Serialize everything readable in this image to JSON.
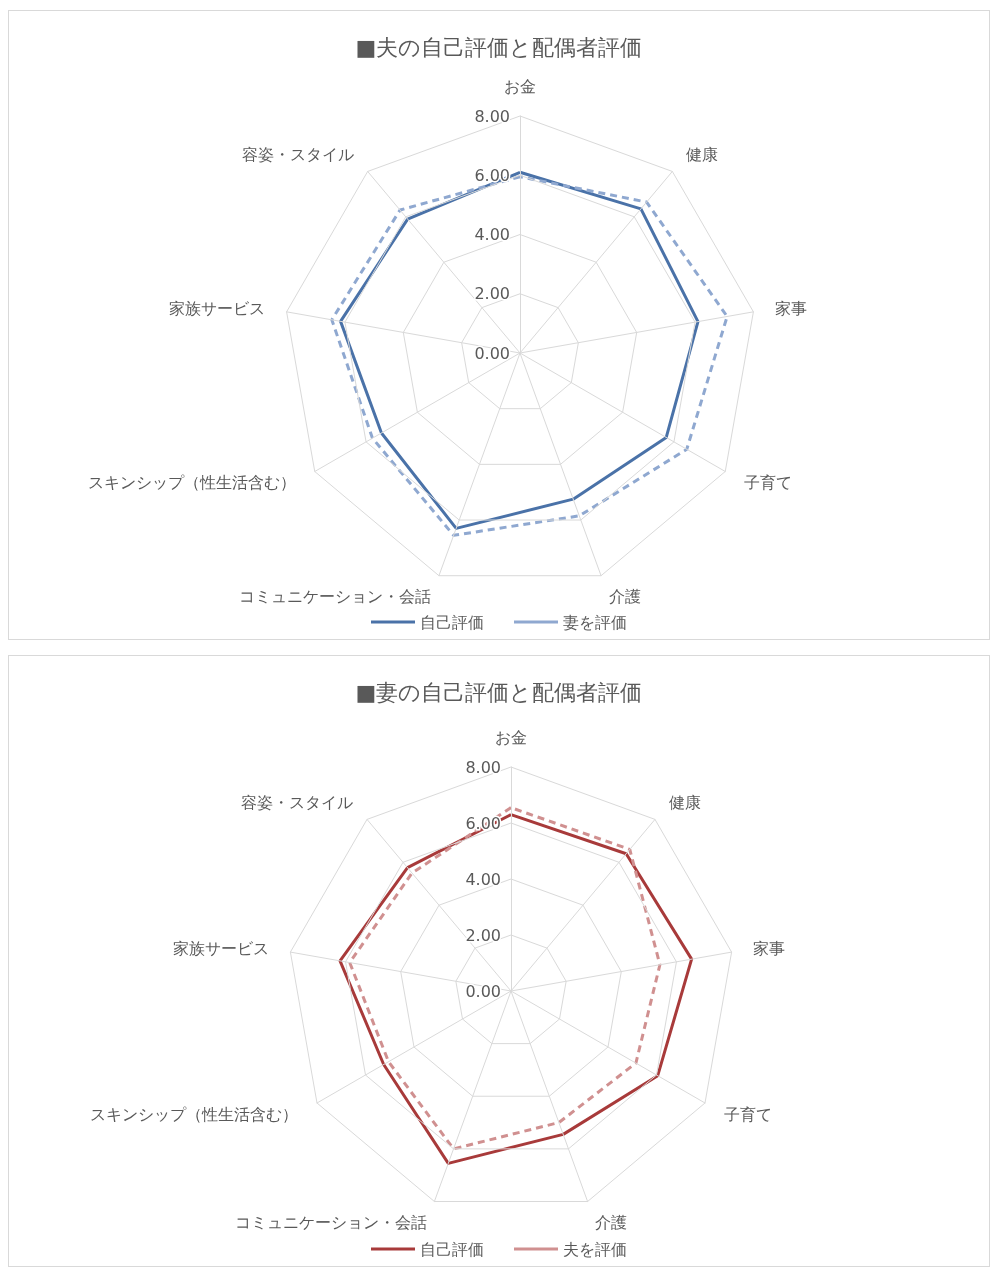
{
  "chart_data": [
    {
      "type": "radar",
      "title": "■夫の自己評価と配偶者評価",
      "categories": [
        "お金",
        "健康",
        "家事",
        "子育て",
        "介護",
        "コミュニケーション・会話",
        "スキンシップ（性生活含む）",
        "家族サービス",
        "容姿・スタイル"
      ],
      "series": [
        {
          "name": "自己評価",
          "color": "#4a72a8",
          "line_style": "solid",
          "values": [
            6.1,
            6.35,
            6.1,
            5.7,
            5.25,
            6.3,
            5.4,
            6.15,
            5.9
          ]
        },
        {
          "name": "妻を評価",
          "color": "#8fa8d0",
          "line_style": "dashed",
          "values": [
            5.95,
            6.65,
            7.1,
            6.5,
            5.85,
            6.55,
            5.75,
            6.45,
            6.3
          ]
        }
      ],
      "ylim": [
        0,
        8
      ],
      "yticks": [
        {
          "value": 0,
          "label": "0.00"
        },
        {
          "value": 2,
          "label": "2.00"
        },
        {
          "value": 4,
          "label": "4.00"
        },
        {
          "value": 6,
          "label": "6.00"
        },
        {
          "value": 8,
          "label": "8.00"
        }
      ],
      "grid": true,
      "legend": "bottom",
      "marker": "none"
    },
    {
      "type": "radar",
      "title": "■妻の自己評価と配偶者評価",
      "categories": [
        "お金",
        "健康",
        "家事",
        "子育て",
        "介護",
        "コミュニケーション・会話",
        "スキンシップ（性生活含む）",
        "家族サービス",
        "容姿・スタイル"
      ],
      "series": [
        {
          "name": "自己評価",
          "color": "#a83a3a",
          "line_style": "solid",
          "values": [
            6.3,
            6.4,
            6.55,
            6.05,
            5.45,
            6.55,
            5.25,
            6.2,
            5.75
          ]
        },
        {
          "name": "夫を評価",
          "color": "#d09090",
          "line_style": "dashed",
          "values": [
            6.55,
            6.6,
            5.4,
            5.15,
            5.0,
            6.0,
            5.05,
            5.85,
            5.5
          ]
        }
      ],
      "ylim": [
        0,
        8
      ],
      "yticks": [
        {
          "value": 0,
          "label": "0.00"
        },
        {
          "value": 2,
          "label": "2.00"
        },
        {
          "value": 4,
          "label": "4.00"
        },
        {
          "value": 6,
          "label": "6.00"
        },
        {
          "value": 8,
          "label": "8.00"
        }
      ],
      "grid": true,
      "legend": "bottom",
      "marker": "none"
    }
  ]
}
